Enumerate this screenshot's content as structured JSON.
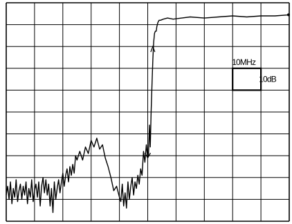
{
  "chart_data": {
    "type": "line",
    "title": "",
    "xlabel": "",
    "ylabel": "",
    "grid": true,
    "grid_divisions": {
      "x": 10,
      "y": 10
    },
    "xlim": [
      0,
      10
    ],
    "ylim": [
      -10,
      0
    ],
    "scale_box": {
      "x_per_div": "10MHz",
      "y_per_div": "10dB"
    },
    "series": [
      {
        "x": [
          0.0,
          0.05,
          0.1,
          0.15,
          0.2,
          0.25,
          0.3,
          0.35,
          0.4,
          0.45,
          0.5,
          0.55,
          0.6,
          0.65,
          0.7,
          0.75,
          0.8,
          0.85,
          0.9,
          0.95,
          1.0,
          1.05,
          1.1,
          1.15,
          1.2,
          1.25,
          1.3,
          1.35,
          1.4,
          1.45,
          1.5,
          1.55,
          1.6,
          1.65,
          1.7,
          1.75,
          1.8,
          1.85,
          1.9,
          1.95,
          2.0,
          2.05,
          2.1,
          2.15,
          2.2,
          2.25,
          2.3,
          2.35,
          2.4,
          2.45,
          2.5,
          2.6,
          2.7,
          2.8,
          2.9,
          3.0,
          3.1,
          3.2,
          3.3,
          3.4,
          3.5,
          3.6,
          3.7,
          3.8,
          3.9,
          4.0,
          4.05,
          4.1,
          4.15,
          4.2,
          4.25,
          4.3,
          4.35,
          4.4,
          4.45,
          4.5,
          4.55,
          4.6,
          4.65,
          4.7,
          4.75,
          4.8,
          4.85,
          4.9,
          4.95,
          5.0,
          5.03,
          5.06,
          5.09,
          5.12,
          5.15,
          5.18,
          5.21,
          5.24,
          5.27,
          5.3,
          5.32,
          5.34,
          5.36,
          5.38,
          5.4,
          5.45,
          5.55,
          5.7,
          5.9,
          6.2,
          6.5,
          7.0,
          7.5,
          8.0,
          8.5,
          9.0,
          9.5,
          10.0
        ],
        "y": [
          -8.8,
          -8.4,
          -9.0,
          -8.2,
          -9.2,
          -8.5,
          -8.9,
          -8.1,
          -9.1,
          -8.6,
          -8.3,
          -9.0,
          -8.4,
          -8.8,
          -8.2,
          -9.2,
          -8.5,
          -8.9,
          -8.1,
          -9.1,
          -8.6,
          -8.3,
          -8.9,
          -8.2,
          -9.3,
          -8.4,
          -8.0,
          -8.7,
          -8.1,
          -8.8,
          -8.3,
          -9.3,
          -8.5,
          -9.6,
          -8.2,
          -9.0,
          -8.5,
          -8.1,
          -8.7,
          -8.2,
          -7.8,
          -8.4,
          -7.9,
          -7.6,
          -8.2,
          -7.5,
          -7.9,
          -7.4,
          -7.8,
          -7.0,
          -7.2,
          -6.8,
          -7.2,
          -6.6,
          -6.9,
          -6.3,
          -6.6,
          -6.2,
          -6.7,
          -6.5,
          -7.1,
          -7.5,
          -8.0,
          -8.6,
          -8.4,
          -8.9,
          -9.1,
          -8.3,
          -9.3,
          -8.7,
          -9.4,
          -8.2,
          -9.0,
          -8.4,
          -8.0,
          -8.8,
          -8.2,
          -8.5,
          -7.9,
          -8.3,
          -7.6,
          -7.9,
          -6.8,
          -7.3,
          -6.5,
          -7.1,
          -6.9,
          -5.6,
          -6.6,
          -5.0,
          -3.8,
          -2.6,
          -1.8,
          -1.4,
          -1.3,
          -1.3,
          -1.1,
          -1.0,
          -0.9,
          -0.85,
          -0.8,
          -0.8,
          -0.75,
          -0.7,
          -0.75,
          -0.7,
          -0.65,
          -0.7,
          -0.65,
          -0.6,
          -0.65,
          -0.6,
          -0.6,
          -0.55
        ]
      }
    ]
  }
}
